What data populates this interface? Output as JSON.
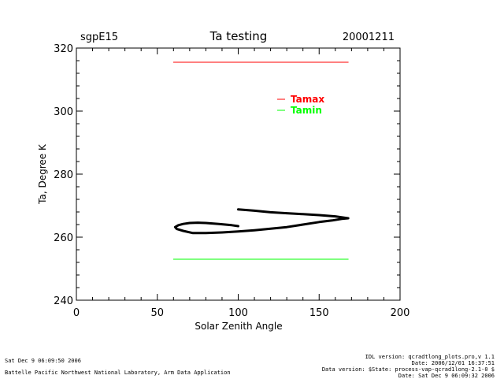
{
  "chart_data": {
    "type": "line",
    "site_label": "sgpE15",
    "title": "Ta testing",
    "date_label": "20001211",
    "xlabel": "Solar Zenith Angle",
    "ylabel": "Ta, Degree K",
    "xlim": [
      0,
      200
    ],
    "ylim": [
      240,
      320
    ],
    "x_ticks": [
      0,
      50,
      100,
      150,
      200
    ],
    "y_ticks": [
      240,
      260,
      280,
      300,
      320
    ],
    "x_minor_step": 10,
    "y_minor_step": 4,
    "series": [
      {
        "name": "Tamax",
        "color": "#ff0000",
        "x": [
          60,
          168
        ],
        "y": [
          315.5,
          315.5
        ]
      },
      {
        "name": "Tamin",
        "color": "#00ff00",
        "x": [
          60,
          168
        ],
        "y": [
          253,
          253
        ]
      },
      {
        "name": "Ta",
        "color": "#000000",
        "x": [
          100,
          110,
          120,
          130,
          140,
          150,
          160,
          168,
          164,
          158,
          150,
          140,
          130,
          120,
          110,
          100,
          90,
          80,
          72,
          66,
          62,
          61,
          63,
          66,
          70,
          75,
          80,
          88,
          96,
          100
        ],
        "y": [
          268.8,
          268.4,
          267.9,
          267.6,
          267.3,
          267.0,
          266.6,
          266.0,
          265.8,
          265.3,
          264.8,
          264.0,
          263.2,
          262.7,
          262.2,
          261.8,
          261.5,
          261.3,
          261.3,
          262.0,
          262.6,
          263.2,
          263.8,
          264.2,
          264.5,
          264.6,
          264.5,
          264.2,
          263.8,
          263.5
        ]
      }
    ],
    "legend": {
      "placement": "upper-right",
      "entries": [
        {
          "label": "Tamax",
          "color": "#ff0000"
        },
        {
          "label": "Tamin",
          "color": "#00ff00"
        }
      ]
    }
  },
  "footer": {
    "date_left": "Sat Dec  9 06:09:50 2006",
    "org": "Battelle Pacific Northwest National Laboratory, Arm Data Application",
    "idl_version": "IDL version: qcradtlong_plots.pro,v 1.1",
    "idl_date": "Date: 2006/12/01 16:37:51",
    "data_version": "Data version: $State: process-vap-qcrad1long-2.1-0 $",
    "date_right": "Date: Sat Dec  9 06:09:32 2006"
  }
}
